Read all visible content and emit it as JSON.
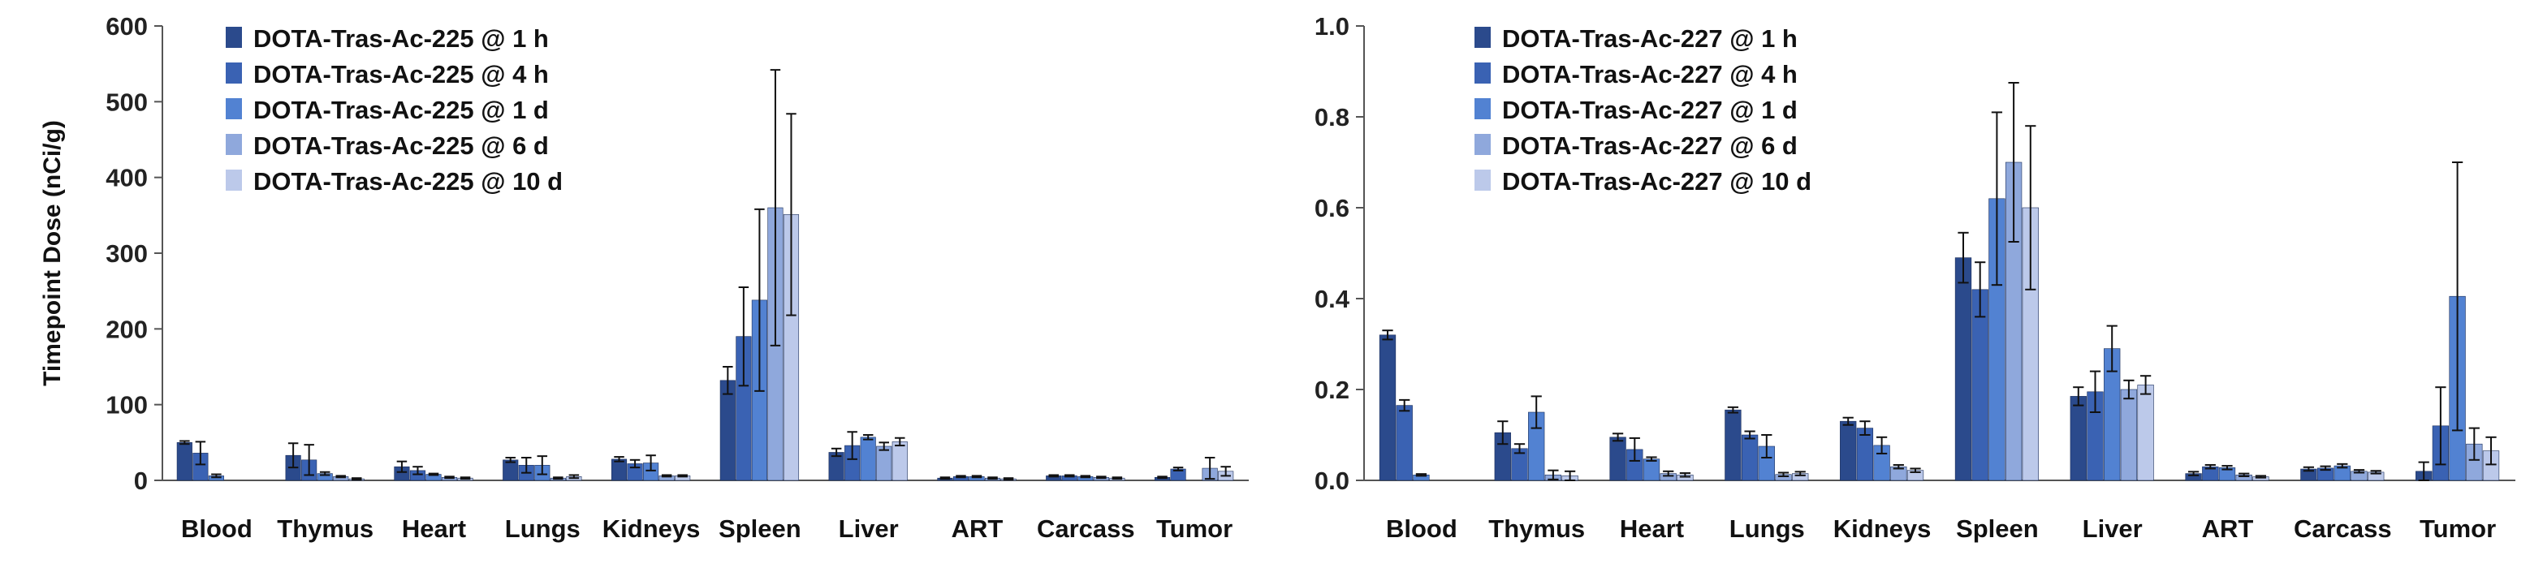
{
  "chart_data": [
    {
      "type": "bar",
      "title": "",
      "ylabel": "Timepoint Dose (nCi/g)",
      "xlabel": "",
      "ylim": [
        0,
        600
      ],
      "yticks": [
        0,
        100,
        200,
        300,
        400,
        500,
        600
      ],
      "ytick_labels": [
        "0",
        "100",
        "200",
        "300",
        "400",
        "500",
        "600"
      ],
      "grid": false,
      "legend_position": "top-left",
      "categories": [
        "Blood",
        "Thymus",
        "Heart",
        "Lungs",
        "Kidneys",
        "Spleen",
        "Liver",
        "ART",
        "Carcass",
        "Tumor"
      ],
      "series": [
        {
          "name": "DOTA-Tras-Ac-225 @ 1 h",
          "color": "#2b4a8c",
          "values": [
            50,
            33,
            18,
            27,
            28,
            132,
            37,
            3,
            6,
            4
          ],
          "errors": [
            2,
            16,
            7,
            3,
            3,
            18,
            5,
            1,
            1,
            1
          ]
        },
        {
          "name": "DOTA-Tras-Ac-225 @ 4 h",
          "color": "#3a62b3",
          "values": [
            36,
            27,
            13,
            20,
            22,
            190,
            46,
            5,
            6,
            15
          ],
          "errors": [
            15,
            20,
            5,
            10,
            5,
            65,
            18,
            1,
            1,
            2
          ]
        },
        {
          "name": "DOTA-Tras-Ac-225 @ 1 d",
          "color": "#5282d2",
          "values": [
            6,
            9,
            8,
            20,
            23,
            238,
            57,
            5,
            5,
            0
          ],
          "errors": [
            2,
            2,
            1,
            12,
            10,
            120,
            3,
            1,
            1,
            0
          ]
        },
        {
          "name": "DOTA-Tras-Ac-225 @ 6 d",
          "color": "#8fa8dc",
          "values": [
            0,
            5,
            4,
            3,
            6,
            360,
            45,
            3,
            4,
            16
          ],
          "errors": [
            0,
            1,
            1,
            1,
            1,
            182,
            5,
            1,
            1,
            14
          ]
        },
        {
          "name": "DOTA-Tras-Ac-225 @ 10 d",
          "color": "#bcc9ea",
          "values": [
            0,
            2,
            3,
            5,
            6,
            351,
            51,
            2,
            3,
            12
          ],
          "errors": [
            0,
            1,
            1,
            2,
            1,
            133,
            5,
            1,
            1,
            6
          ]
        }
      ]
    },
    {
      "type": "bar",
      "title": "",
      "ylabel": "",
      "xlabel": "",
      "ylim": [
        0,
        1.0
      ],
      "yticks": [
        0,
        0.2,
        0.4,
        0.6,
        0.8,
        1.0
      ],
      "ytick_labels": [
        "0.0",
        "0.2",
        "0.4",
        "0.6",
        "0.8",
        "1.0"
      ],
      "grid": false,
      "legend_position": "top-left",
      "categories": [
        "Blood",
        "Thymus",
        "Heart",
        "Lungs",
        "Kidneys",
        "Spleen",
        "Liver",
        "ART",
        "Carcass",
        "Tumor"
      ],
      "series": [
        {
          "name": "DOTA-Tras-Ac-227 @ 1 h",
          "color": "#2b4a8c",
          "values": [
            0.32,
            0.105,
            0.095,
            0.155,
            0.13,
            0.49,
            0.185,
            0.015,
            0.025,
            0.02
          ],
          "errors": [
            0.01,
            0.025,
            0.008,
            0.006,
            0.008,
            0.055,
            0.02,
            0.004,
            0.004,
            0.02
          ]
        },
        {
          "name": "DOTA-Tras-Ac-227 @ 4 h",
          "color": "#3a62b3",
          "values": [
            0.165,
            0.07,
            0.068,
            0.1,
            0.115,
            0.42,
            0.195,
            0.03,
            0.027,
            0.12
          ],
          "errors": [
            0.012,
            0.01,
            0.025,
            0.008,
            0.015,
            0.06,
            0.045,
            0.004,
            0.004,
            0.085
          ]
        },
        {
          "name": "DOTA-Tras-Ac-227 @ 1 d",
          "color": "#5282d2",
          "values": [
            0.012,
            0.15,
            0.047,
            0.075,
            0.077,
            0.62,
            0.29,
            0.028,
            0.032,
            0.405
          ]
        },
        {
          "name": "DOTA-Tras-Ac-227 @ 6 d",
          "color": "#8fa8dc",
          "values": [
            0,
            0.012,
            0.015,
            0.013,
            0.03,
            0.7,
            0.2,
            0.012,
            0.02,
            0.08
          ]
        },
        {
          "name": "DOTA-Tras-Ac-227 @ 10 d",
          "color": "#bcc9ea",
          "values": [
            0,
            0.01,
            0.012,
            0.015,
            0.022,
            0.6,
            0.21,
            0.008,
            0.018,
            0.065
          ]
        }
      ],
      "errors_by_series": [
        [
          0.01,
          0.025,
          0.008,
          0.006,
          0.008,
          0.055,
          0.02,
          0.004,
          0.004,
          0.02
        ],
        [
          0.012,
          0.01,
          0.025,
          0.008,
          0.015,
          0.06,
          0.045,
          0.004,
          0.004,
          0.085
        ],
        [
          0.002,
          0.035,
          0.004,
          0.025,
          0.018,
          0.19,
          0.05,
          0.004,
          0.004,
          0.295
        ],
        [
          0,
          0.01,
          0.005,
          0.004,
          0.004,
          0.175,
          0.02,
          0.003,
          0.003,
          0.035
        ],
        [
          0,
          0.01,
          0.004,
          0.004,
          0.004,
          0.18,
          0.02,
          0.002,
          0.003,
          0.03
        ]
      ]
    }
  ]
}
